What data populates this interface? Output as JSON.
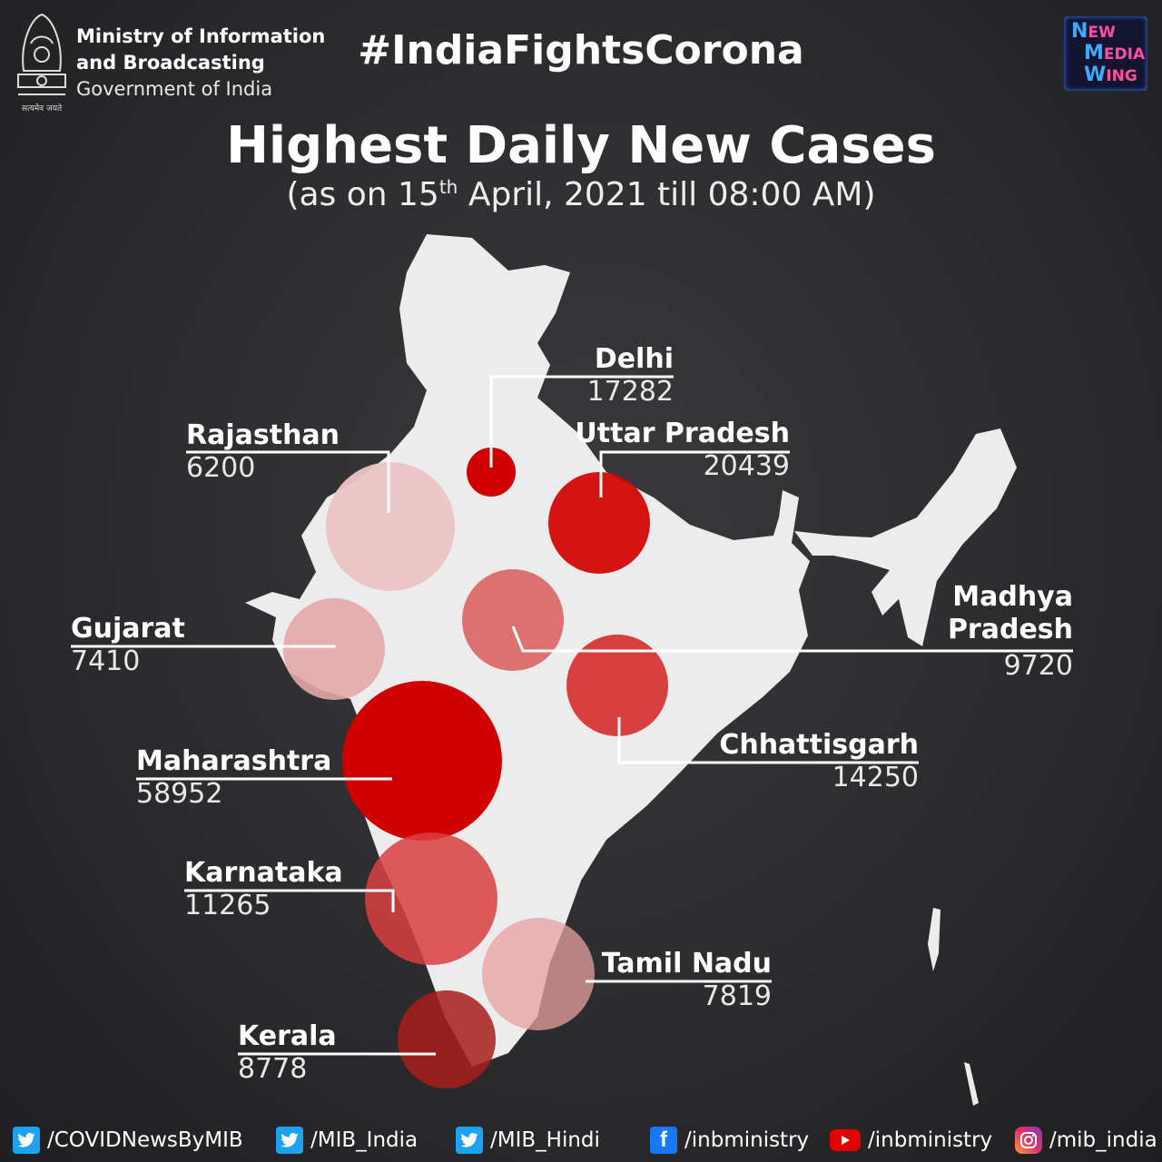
{
  "header": {
    "emblem_caption": "सत्यमेव जयते",
    "ministry_line1": "Ministry of Information",
    "ministry_line2": "and Broadcasting",
    "government": "Government of India",
    "hashtag": "#IndiaFightsCorona",
    "logo_lines": [
      {
        "cap": "N",
        "rest": "EW"
      },
      {
        "cap": "M",
        "rest": "EDIA"
      },
      {
        "cap": "W",
        "rest": "ING"
      }
    ]
  },
  "title": "Highest Daily New Cases",
  "subtitle": {
    "before": "(as on 15",
    "sup": "th",
    "after": " April, 2021 till 08:00 AM)"
  },
  "map_data": {
    "type": "proportional-symbol-map",
    "region": "India",
    "colors": {
      "map_fill": "#ececec",
      "bubble_dark": "#d10000",
      "bubble_mid": "#dc4848",
      "bubble_light": "#ecc4c4",
      "background": "#2c2c2e"
    },
    "states": [
      {
        "name": "Delhi",
        "value": "17282"
      },
      {
        "name": "Uttar Pradesh",
        "value": "20439"
      },
      {
        "name": "Rajasthan",
        "value": "6200"
      },
      {
        "name": "Gujarat",
        "value": "7410"
      },
      {
        "name": "Madhya Pradesh",
        "name_lines": [
          "Madhya",
          "Pradesh"
        ],
        "value": "9720"
      },
      {
        "name": "Chhattisgarh",
        "value": "14250"
      },
      {
        "name": "Maharashtra",
        "value": "58952"
      },
      {
        "name": "Karnataka",
        "value": "11265"
      },
      {
        "name": "Tamil Nadu",
        "value": "7819"
      },
      {
        "name": "Kerala",
        "value": "8778"
      }
    ]
  },
  "footer": {
    "links": [
      {
        "icon": "twitter-icon",
        "text": "/COVIDNewsByMIB"
      },
      {
        "icon": "twitter-icon",
        "text": "/MIB_India"
      },
      {
        "icon": "twitter-icon",
        "text": "/MIB_Hindi"
      },
      {
        "icon": "facebook-icon",
        "text": "/inbministry"
      },
      {
        "icon": "youtube-icon",
        "text": "/inbministry"
      },
      {
        "icon": "instagram-icon",
        "text": "/mib_india"
      }
    ]
  }
}
